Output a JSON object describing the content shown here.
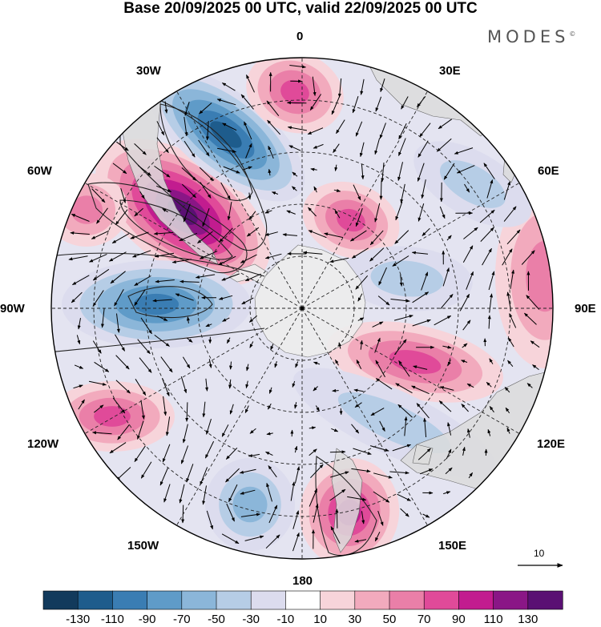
{
  "title": "Base 20/09/2025 00 UTC, valid 22/09/2025 00 UTC",
  "brand": "MODES",
  "brand_mark": "©",
  "longitude_labels": {
    "top": "0",
    "e30": "30E",
    "e60": "60E",
    "e90": "90E",
    "e120": "120E",
    "e150": "150E",
    "bottom": "180",
    "w150": "150W",
    "w120": "120W",
    "w90": "90W",
    "w60": "60W",
    "w30": "30W"
  },
  "vector_reference": {
    "value": "10"
  },
  "colorbar": {
    "labels": [
      "-130",
      "-110",
      "-90",
      "-70",
      "-50",
      "-30",
      "-10",
      "10",
      "30",
      "50",
      "70",
      "90",
      "110",
      "130"
    ],
    "colors": [
      "#123a5c",
      "#1e5c8c",
      "#3a7db3",
      "#5f9bc8",
      "#8bb6d9",
      "#b6cde6",
      "#dcdcee",
      "#ffffff",
      "#f7d4da",
      "#f2aabd",
      "#ea7fa8",
      "#e04a99",
      "#c21c8f",
      "#8a1686",
      "#5a1073"
    ]
  },
  "palette": {
    "background": "#ffffff",
    "land": "#dcdcdc",
    "antarctica": "#ececec",
    "grid": "#222222"
  }
}
